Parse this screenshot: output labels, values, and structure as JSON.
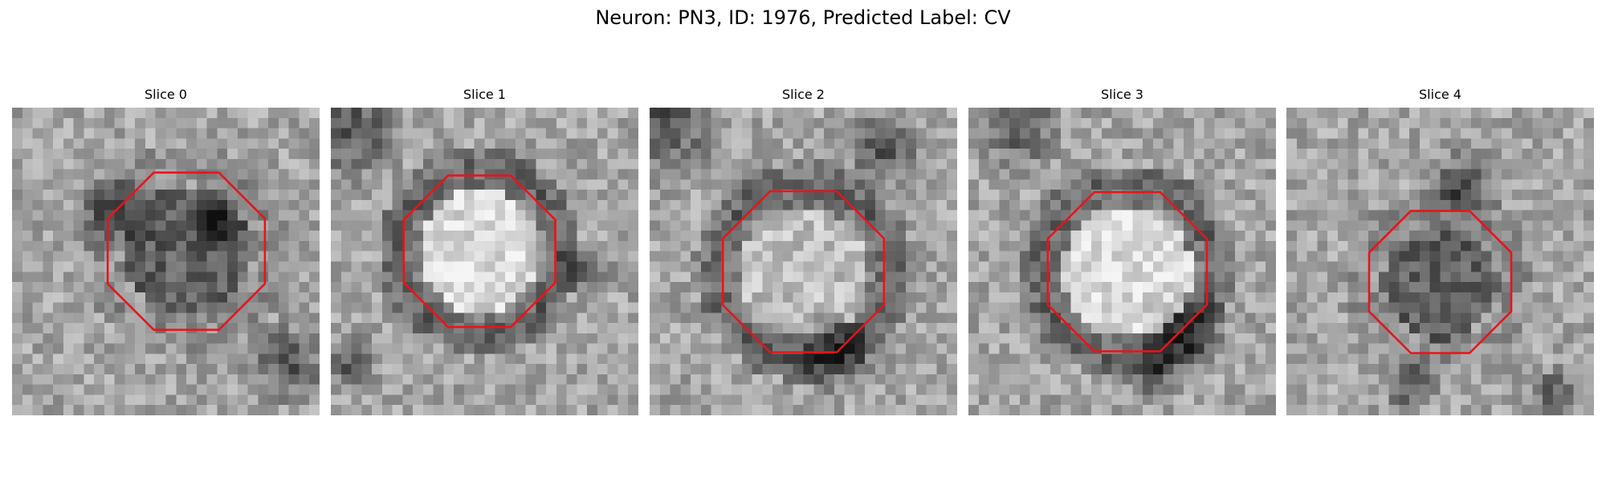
{
  "figure": {
    "title": "Neuron: PN3, ID: 1976, Predicted Label: CV"
  },
  "panels": [
    {
      "title": "Slice 0",
      "center": "dark",
      "ring": "mid"
    },
    {
      "title": "Slice 1",
      "center": "bright",
      "ring": "dark"
    },
    {
      "title": "Slice 2",
      "center": "light",
      "ring": "dark"
    },
    {
      "title": "Slice 3",
      "center": "bright",
      "ring": "dark"
    },
    {
      "title": "Slice 4",
      "center": "dark",
      "ring": "mid"
    }
  ],
  "colors": {
    "contour": "#e8141a",
    "background": "#ffffff"
  }
}
